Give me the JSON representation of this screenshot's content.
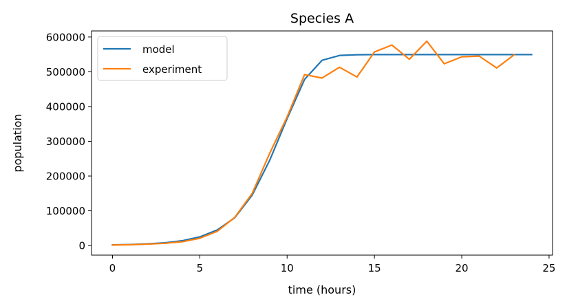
{
  "chart_data": {
    "type": "line",
    "title": "Species A",
    "xlabel": "time (hours)",
    "ylabel": "population",
    "xlim": [
      -1.2,
      25.2
    ],
    "ylim": [
      -27500,
      617500
    ],
    "xticks": [
      0,
      5,
      10,
      15,
      20,
      25
    ],
    "yticks": [
      0,
      100000,
      200000,
      300000,
      400000,
      500000,
      600000
    ],
    "xtick_labels": [
      "0",
      "5",
      "10",
      "15",
      "20",
      "25"
    ],
    "ytick_labels": [
      "0",
      "100000",
      "200000",
      "300000",
      "400000",
      "500000",
      "600000"
    ],
    "grid": false,
    "legend_position": "top-left",
    "series": [
      {
        "name": "model",
        "color": "#1f77b4",
        "x": [
          0,
          1,
          2,
          3,
          4,
          5,
          6,
          7,
          8,
          9,
          10,
          11,
          12,
          13,
          14,
          15,
          16,
          17,
          18,
          19,
          20,
          21,
          22,
          23,
          24
        ],
        "y": [
          2000,
          3000,
          5000,
          8000,
          14000,
          25000,
          45000,
          80000,
          145000,
          245000,
          365000,
          478000,
          533000,
          547000,
          549000,
          549500,
          549500,
          549500,
          549500,
          549500,
          549500,
          549500,
          549500,
          549500,
          549500
        ]
      },
      {
        "name": "experiment",
        "color": "#ff7f0e",
        "x": [
          0,
          1,
          2,
          3,
          4,
          5,
          6,
          7,
          8,
          9,
          10,
          11,
          12,
          13,
          14,
          15,
          16,
          17,
          18,
          19,
          20,
          21,
          22,
          23
        ],
        "y": [
          1500,
          2500,
          4000,
          6500,
          11000,
          21000,
          41000,
          81000,
          150000,
          265000,
          370000,
          492000,
          482000,
          513000,
          485000,
          557000,
          577000,
          536000,
          588000,
          523000,
          543000,
          545000,
          511000,
          549000
        ]
      }
    ]
  }
}
